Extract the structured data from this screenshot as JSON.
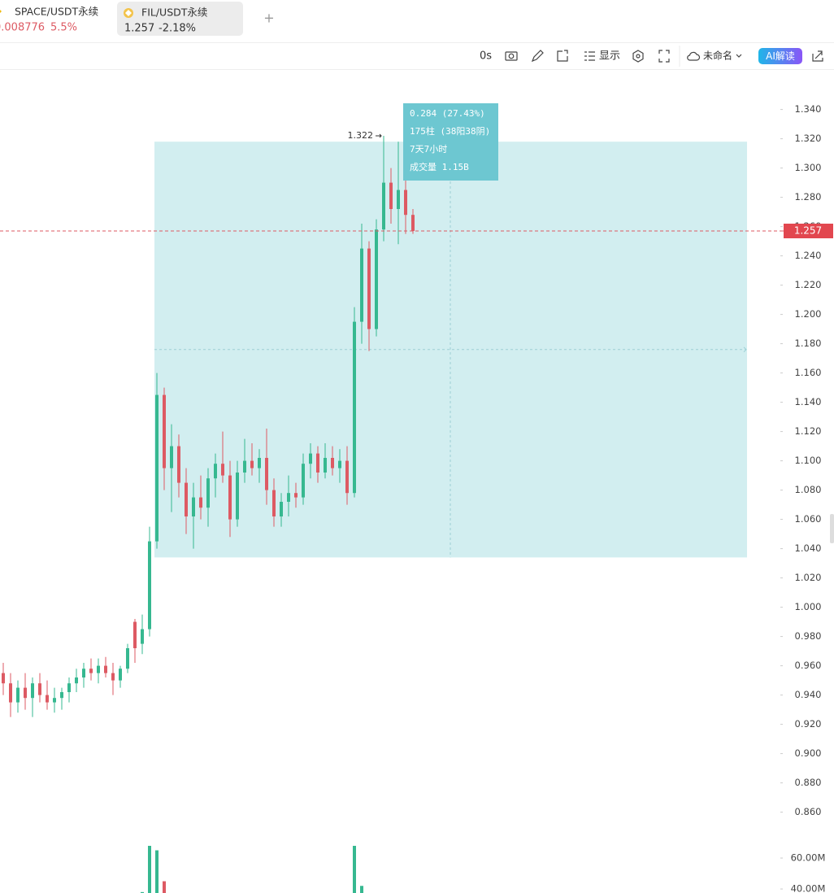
{
  "header": {
    "tabs": [
      {
        "name": "SPACE/USDT永续",
        "price": "0.008776",
        "change": "5.5%"
      },
      {
        "name": "FIL/USDT永续",
        "price": "1.257",
        "change": "-2.18%"
      }
    ],
    "new_tab": "+"
  },
  "toolbar": {
    "interval": "0s",
    "display": "显示",
    "layout_name": "未命名",
    "ai": "AI解读"
  },
  "chart_data": {
    "type": "candlestick",
    "up_color": "#36b890",
    "down_color": "#dd5a63",
    "ylim": [
      0.837,
      1.367
    ],
    "yticks": [
      {
        "value": 1.34,
        "label": "1.340"
      },
      {
        "value": 1.32,
        "label": "1.320"
      },
      {
        "value": 1.3,
        "label": "1.300"
      },
      {
        "value": 1.28,
        "label": "1.280"
      },
      {
        "value": 1.26,
        "label": "1.260"
      },
      {
        "value": 1.24,
        "label": "1.240"
      },
      {
        "value": 1.22,
        "label": "1.220"
      },
      {
        "value": 1.2,
        "label": "1.200"
      },
      {
        "value": 1.18,
        "label": "1.180"
      },
      {
        "value": 1.16,
        "label": "1.160"
      },
      {
        "value": 1.14,
        "label": "1.140"
      },
      {
        "value": 1.12,
        "label": "1.120"
      },
      {
        "value": 1.1,
        "label": "1.100"
      },
      {
        "value": 1.08,
        "label": "1.080"
      },
      {
        "value": 1.06,
        "label": "1.060"
      },
      {
        "value": 1.04,
        "label": "1.040"
      },
      {
        "value": 1.02,
        "label": "1.020"
      },
      {
        "value": 1.0,
        "label": "1.000"
      },
      {
        "value": 0.98,
        "label": "0.980"
      },
      {
        "value": 0.96,
        "label": "0.960"
      },
      {
        "value": 0.94,
        "label": "0.940"
      },
      {
        "value": 0.92,
        "label": "0.920"
      },
      {
        "value": 0.9,
        "label": "0.900"
      },
      {
        "value": 0.88,
        "label": "0.880"
      },
      {
        "value": 0.86,
        "label": "0.860"
      }
    ],
    "ohlc": [
      [
        0.955,
        0.962,
        0.94,
        0.948
      ],
      [
        0.948,
        0.955,
        0.925,
        0.935
      ],
      [
        0.935,
        0.95,
        0.928,
        0.945
      ],
      [
        0.945,
        0.955,
        0.93,
        0.938
      ],
      [
        0.938,
        0.952,
        0.925,
        0.948
      ],
      [
        0.948,
        0.955,
        0.935,
        0.94
      ],
      [
        0.94,
        0.95,
        0.93,
        0.935
      ],
      [
        0.935,
        0.945,
        0.928,
        0.938
      ],
      [
        0.938,
        0.945,
        0.93,
        0.942
      ],
      [
        0.942,
        0.952,
        0.935,
        0.948
      ],
      [
        0.948,
        0.958,
        0.942,
        0.952
      ],
      [
        0.952,
        0.962,
        0.945,
        0.958
      ],
      [
        0.958,
        0.965,
        0.95,
        0.955
      ],
      [
        0.955,
        0.965,
        0.948,
        0.96
      ],
      [
        0.96,
        0.966,
        0.952,
        0.955
      ],
      [
        0.955,
        0.962,
        0.94,
        0.95
      ],
      [
        0.95,
        0.96,
        0.945,
        0.958
      ],
      [
        0.958,
        0.975,
        0.955,
        0.972
      ],
      [
        0.99,
        0.992,
        0.962,
        0.972
      ],
      [
        0.975,
        0.995,
        0.968,
        0.985
      ],
      [
        0.985,
        1.055,
        0.98,
        1.045
      ],
      [
        1.045,
        1.16,
        1.04,
        1.145
      ],
      [
        1.145,
        1.15,
        1.08,
        1.095
      ],
      [
        1.095,
        1.125,
        1.065,
        1.11
      ],
      [
        1.11,
        1.118,
        1.075,
        1.085
      ],
      [
        1.085,
        1.095,
        1.05,
        1.062
      ],
      [
        1.062,
        1.085,
        1.04,
        1.075
      ],
      [
        1.075,
        1.09,
        1.06,
        1.068
      ],
      [
        1.068,
        1.095,
        1.055,
        1.088
      ],
      [
        1.088,
        1.105,
        1.075,
        1.098
      ],
      [
        1.098,
        1.12,
        1.085,
        1.09
      ],
      [
        1.09,
        1.1,
        1.048,
        1.06
      ],
      [
        1.06,
        1.1,
        1.055,
        1.092
      ],
      [
        1.092,
        1.115,
        1.085,
        1.1
      ],
      [
        1.1,
        1.112,
        1.09,
        1.095
      ],
      [
        1.095,
        1.108,
        1.085,
        1.102
      ],
      [
        1.102,
        1.122,
        1.07,
        1.08
      ],
      [
        1.08,
        1.088,
        1.055,
        1.062
      ],
      [
        1.062,
        1.078,
        1.055,
        1.072
      ],
      [
        1.072,
        1.09,
        1.062,
        1.078
      ],
      [
        1.078,
        1.085,
        1.068,
        1.075
      ],
      [
        1.075,
        1.105,
        1.07,
        1.098
      ],
      [
        1.098,
        1.112,
        1.088,
        1.105
      ],
      [
        1.105,
        1.11,
        1.085,
        1.092
      ],
      [
        1.092,
        1.112,
        1.088,
        1.102
      ],
      [
        1.102,
        1.11,
        1.09,
        1.095
      ],
      [
        1.095,
        1.108,
        1.085,
        1.1
      ],
      [
        1.1,
        1.11,
        1.07,
        1.078
      ],
      [
        1.078,
        1.205,
        1.075,
        1.195
      ],
      [
        1.195,
        1.262,
        1.18,
        1.245
      ],
      [
        1.245,
        1.25,
        1.175,
        1.19
      ],
      [
        1.19,
        1.265,
        1.185,
        1.258
      ],
      [
        1.258,
        1.322,
        1.25,
        1.29
      ],
      [
        1.29,
        1.3,
        1.262,
        1.272
      ],
      [
        1.272,
        1.318,
        1.248,
        1.285
      ],
      [
        1.285,
        1.295,
        1.255,
        1.268
      ],
      [
        1.268,
        1.272,
        1.255,
        1.257
      ]
    ],
    "volume": [
      20,
      18,
      22,
      19,
      20,
      18,
      17,
      18,
      19,
      20,
      21,
      22,
      20,
      21,
      19,
      22,
      21,
      25,
      30,
      38,
      70,
      65,
      45,
      32,
      28,
      26,
      24,
      22,
      23,
      22,
      24,
      25,
      22,
      21,
      20,
      21,
      24,
      22,
      20,
      19,
      18,
      21,
      22,
      20,
      19,
      20,
      21,
      24,
      75,
      42,
      30,
      28,
      33,
      26,
      25,
      22,
      20
    ],
    "vol_ylim": [
      37.4,
      67.9
    ],
    "vol_yticks": [
      {
        "value": 60,
        "label": "60.00M"
      },
      {
        "value": 40,
        "label": "40.00M"
      }
    ],
    "last_price": {
      "value": 1.257,
      "label": "1.257"
    },
    "high_mark": {
      "value": 1.322,
      "label": "1.322"
    },
    "range": {
      "top": 1.318,
      "bottom": 1.034,
      "middle": 1.176,
      "lines": [
        "0.284 (27.43%)",
        "175柱 (38阳38阴)",
        "7天7小时",
        "成交量 1.15B"
      ]
    }
  }
}
